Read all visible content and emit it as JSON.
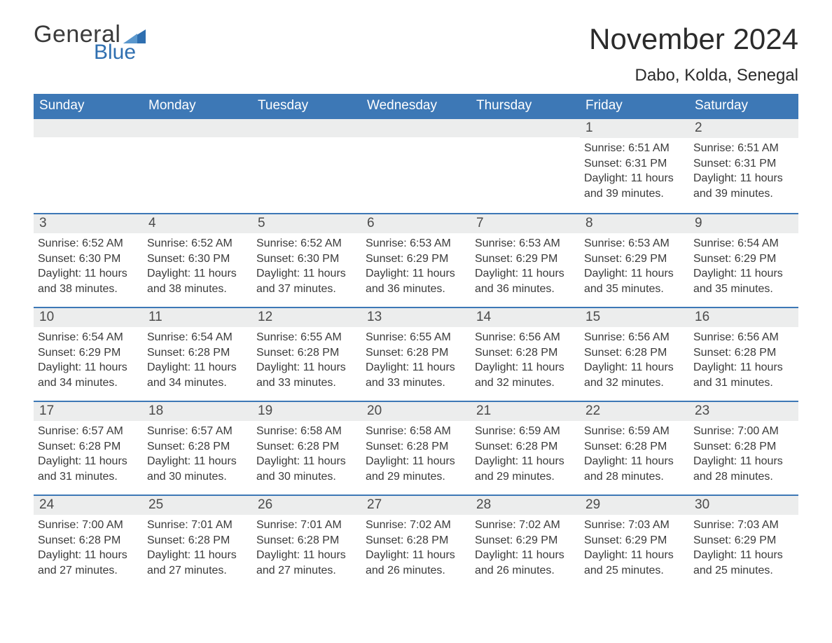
{
  "logo": {
    "text_top": "General",
    "text_bottom": "Blue",
    "shape_color": "#2f6fb0"
  },
  "header": {
    "month_title": "November 2024",
    "location": "Dabo, Kolda, Senegal"
  },
  "colors": {
    "header_bg": "#3d78b6",
    "header_text": "#ffffff",
    "daynum_bg": "#eceded",
    "week_divider": "#3d78b6",
    "body_text": "#3a3a3a",
    "page_bg": "#ffffff"
  },
  "weekdays": [
    "Sunday",
    "Monday",
    "Tuesday",
    "Wednesday",
    "Thursday",
    "Friday",
    "Saturday"
  ],
  "label": {
    "sunrise": "Sunrise:",
    "sunset": "Sunset:",
    "daylight": "Daylight:"
  },
  "weeks": [
    [
      null,
      null,
      null,
      null,
      null,
      {
        "n": "1",
        "sunrise": "6:51 AM",
        "sunset": "6:31 PM",
        "daylight": "11 hours and 39 minutes."
      },
      {
        "n": "2",
        "sunrise": "6:51 AM",
        "sunset": "6:31 PM",
        "daylight": "11 hours and 39 minutes."
      }
    ],
    [
      {
        "n": "3",
        "sunrise": "6:52 AM",
        "sunset": "6:30 PM",
        "daylight": "11 hours and 38 minutes."
      },
      {
        "n": "4",
        "sunrise": "6:52 AM",
        "sunset": "6:30 PM",
        "daylight": "11 hours and 38 minutes."
      },
      {
        "n": "5",
        "sunrise": "6:52 AM",
        "sunset": "6:30 PM",
        "daylight": "11 hours and 37 minutes."
      },
      {
        "n": "6",
        "sunrise": "6:53 AM",
        "sunset": "6:29 PM",
        "daylight": "11 hours and 36 minutes."
      },
      {
        "n": "7",
        "sunrise": "6:53 AM",
        "sunset": "6:29 PM",
        "daylight": "11 hours and 36 minutes."
      },
      {
        "n": "8",
        "sunrise": "6:53 AM",
        "sunset": "6:29 PM",
        "daylight": "11 hours and 35 minutes."
      },
      {
        "n": "9",
        "sunrise": "6:54 AM",
        "sunset": "6:29 PM",
        "daylight": "11 hours and 35 minutes."
      }
    ],
    [
      {
        "n": "10",
        "sunrise": "6:54 AM",
        "sunset": "6:29 PM",
        "daylight": "11 hours and 34 minutes."
      },
      {
        "n": "11",
        "sunrise": "6:54 AM",
        "sunset": "6:28 PM",
        "daylight": "11 hours and 34 minutes."
      },
      {
        "n": "12",
        "sunrise": "6:55 AM",
        "sunset": "6:28 PM",
        "daylight": "11 hours and 33 minutes."
      },
      {
        "n": "13",
        "sunrise": "6:55 AM",
        "sunset": "6:28 PM",
        "daylight": "11 hours and 33 minutes."
      },
      {
        "n": "14",
        "sunrise": "6:56 AM",
        "sunset": "6:28 PM",
        "daylight": "11 hours and 32 minutes."
      },
      {
        "n": "15",
        "sunrise": "6:56 AM",
        "sunset": "6:28 PM",
        "daylight": "11 hours and 32 minutes."
      },
      {
        "n": "16",
        "sunrise": "6:56 AM",
        "sunset": "6:28 PM",
        "daylight": "11 hours and 31 minutes."
      }
    ],
    [
      {
        "n": "17",
        "sunrise": "6:57 AM",
        "sunset": "6:28 PM",
        "daylight": "11 hours and 31 minutes."
      },
      {
        "n": "18",
        "sunrise": "6:57 AM",
        "sunset": "6:28 PM",
        "daylight": "11 hours and 30 minutes."
      },
      {
        "n": "19",
        "sunrise": "6:58 AM",
        "sunset": "6:28 PM",
        "daylight": "11 hours and 30 minutes."
      },
      {
        "n": "20",
        "sunrise": "6:58 AM",
        "sunset": "6:28 PM",
        "daylight": "11 hours and 29 minutes."
      },
      {
        "n": "21",
        "sunrise": "6:59 AM",
        "sunset": "6:28 PM",
        "daylight": "11 hours and 29 minutes."
      },
      {
        "n": "22",
        "sunrise": "6:59 AM",
        "sunset": "6:28 PM",
        "daylight": "11 hours and 28 minutes."
      },
      {
        "n": "23",
        "sunrise": "7:00 AM",
        "sunset": "6:28 PM",
        "daylight": "11 hours and 28 minutes."
      }
    ],
    [
      {
        "n": "24",
        "sunrise": "7:00 AM",
        "sunset": "6:28 PM",
        "daylight": "11 hours and 27 minutes."
      },
      {
        "n": "25",
        "sunrise": "7:01 AM",
        "sunset": "6:28 PM",
        "daylight": "11 hours and 27 minutes."
      },
      {
        "n": "26",
        "sunrise": "7:01 AM",
        "sunset": "6:28 PM",
        "daylight": "11 hours and 27 minutes."
      },
      {
        "n": "27",
        "sunrise": "7:02 AM",
        "sunset": "6:28 PM",
        "daylight": "11 hours and 26 minutes."
      },
      {
        "n": "28",
        "sunrise": "7:02 AM",
        "sunset": "6:29 PM",
        "daylight": "11 hours and 26 minutes."
      },
      {
        "n": "29",
        "sunrise": "7:03 AM",
        "sunset": "6:29 PM",
        "daylight": "11 hours and 25 minutes."
      },
      {
        "n": "30",
        "sunrise": "7:03 AM",
        "sunset": "6:29 PM",
        "daylight": "11 hours and 25 minutes."
      }
    ]
  ]
}
